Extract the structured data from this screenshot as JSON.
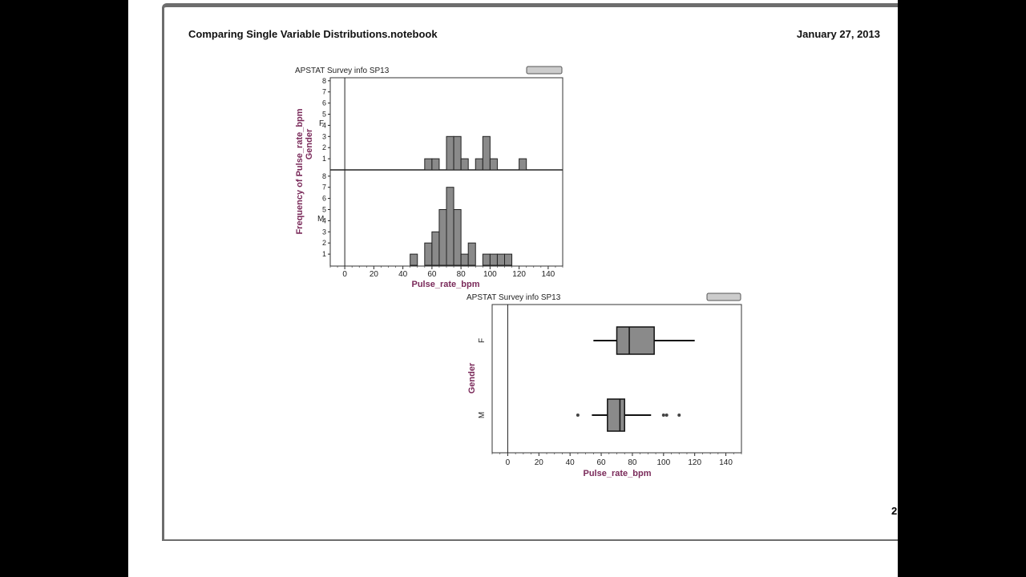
{
  "document": {
    "title": "Comparing Single Variable Distributions.notebook",
    "date": "January 27, 2013",
    "page_number": "2"
  },
  "chart_data": [
    {
      "type": "bar",
      "subtype": "histogram",
      "title": "APSTAT Survey info SP13",
      "xlabel": "Pulse_rate_bpm",
      "ylabel": "Frequency of Pulse_rate_bpm",
      "facet_label": "Gender",
      "xlim": [
        -10,
        150
      ],
      "xticks": [
        0,
        20,
        40,
        60,
        80,
        100,
        120,
        140
      ],
      "bin_width": 5,
      "panels": [
        {
          "name": "F",
          "ylim": [
            0,
            8
          ],
          "yticks": [
            1,
            2,
            3,
            4,
            5,
            6,
            7,
            8
          ],
          "bins": [
            {
              "x0": 55,
              "count": 1
            },
            {
              "x0": 60,
              "count": 1
            },
            {
              "x0": 70,
              "count": 3
            },
            {
              "x0": 75,
              "count": 3
            },
            {
              "x0": 80,
              "count": 1
            },
            {
              "x0": 90,
              "count": 1
            },
            {
              "x0": 95,
              "count": 3
            },
            {
              "x0": 100,
              "count": 1
            },
            {
              "x0": 120,
              "count": 1
            }
          ]
        },
        {
          "name": "M",
          "ylim": [
            0,
            8
          ],
          "yticks": [
            1,
            2,
            3,
            4,
            5,
            6,
            7,
            8
          ],
          "bins": [
            {
              "x0": 45,
              "count": 1
            },
            {
              "x0": 55,
              "count": 2
            },
            {
              "x0": 60,
              "count": 3
            },
            {
              "x0": 65,
              "count": 5
            },
            {
              "x0": 70,
              "count": 7
            },
            {
              "x0": 75,
              "count": 5
            },
            {
              "x0": 80,
              "count": 1
            },
            {
              "x0": 85,
              "count": 2
            },
            {
              "x0": 95,
              "count": 1
            },
            {
              "x0": 100,
              "count": 1
            },
            {
              "x0": 105,
              "count": 1
            },
            {
              "x0": 110,
              "count": 1
            }
          ]
        }
      ]
    },
    {
      "type": "boxplot",
      "title": "APSTAT Survey info SP13",
      "xlabel": "Pulse_rate_bpm",
      "ylabel": "Gender",
      "xlim": [
        -10,
        150
      ],
      "xticks": [
        0,
        20,
        40,
        60,
        80,
        100,
        120,
        140
      ],
      "groups": [
        {
          "name": "F",
          "min": 55,
          "q1": 70,
          "median": 78,
          "q3": 94,
          "max": 120,
          "outliers": []
        },
        {
          "name": "M",
          "min": 54,
          "q1": 64,
          "median": 72,
          "q3": 75,
          "max": 92,
          "outliers": [
            45,
            100,
            102,
            110
          ]
        }
      ]
    }
  ]
}
